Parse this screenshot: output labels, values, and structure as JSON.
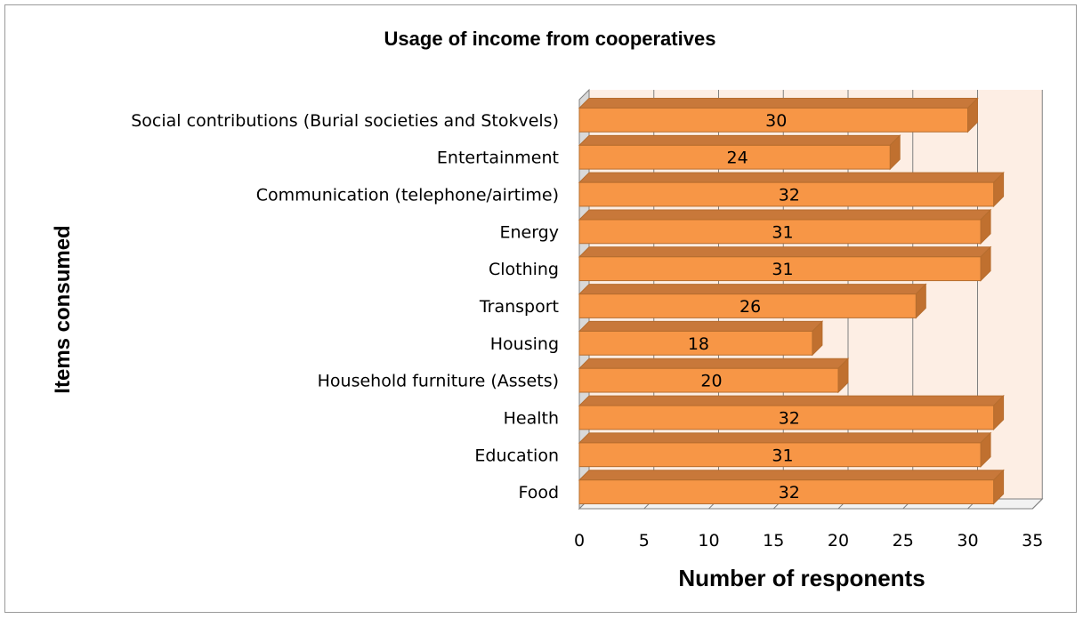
{
  "chart_data": {
    "type": "bar",
    "orientation": "horizontal",
    "title": "Usage of income from cooperatives",
    "xlabel": "Number of responents",
    "ylabel": "Items consumed",
    "categories": [
      "Social contributions (Burial societies and Stokvels)",
      "Entertainment",
      "Communication (telephone/airtime)",
      "Energy",
      "Clothing",
      "Transport",
      "Housing",
      "Household furniture (Assets)",
      "Health",
      "Education",
      "Food"
    ],
    "values": [
      30,
      24,
      32,
      31,
      31,
      26,
      18,
      20,
      32,
      31,
      32
    ],
    "data_labels": [
      "30",
      "24",
      "32",
      "31",
      "31",
      "26",
      "18",
      "20",
      "32",
      "31",
      "32"
    ],
    "xlim": [
      0,
      35
    ],
    "xticks": [
      "0",
      "5",
      "10",
      "15",
      "20",
      "25",
      "30",
      "35"
    ],
    "grid": true,
    "legend": "none",
    "bar_color": "#f79646",
    "bar_edge_color": "#b66d2e",
    "bar_top_color": "#c8783a",
    "bar_side_color": "#c0702f",
    "back_wall_color": "#fdeee4",
    "grid_color": "#808080"
  }
}
